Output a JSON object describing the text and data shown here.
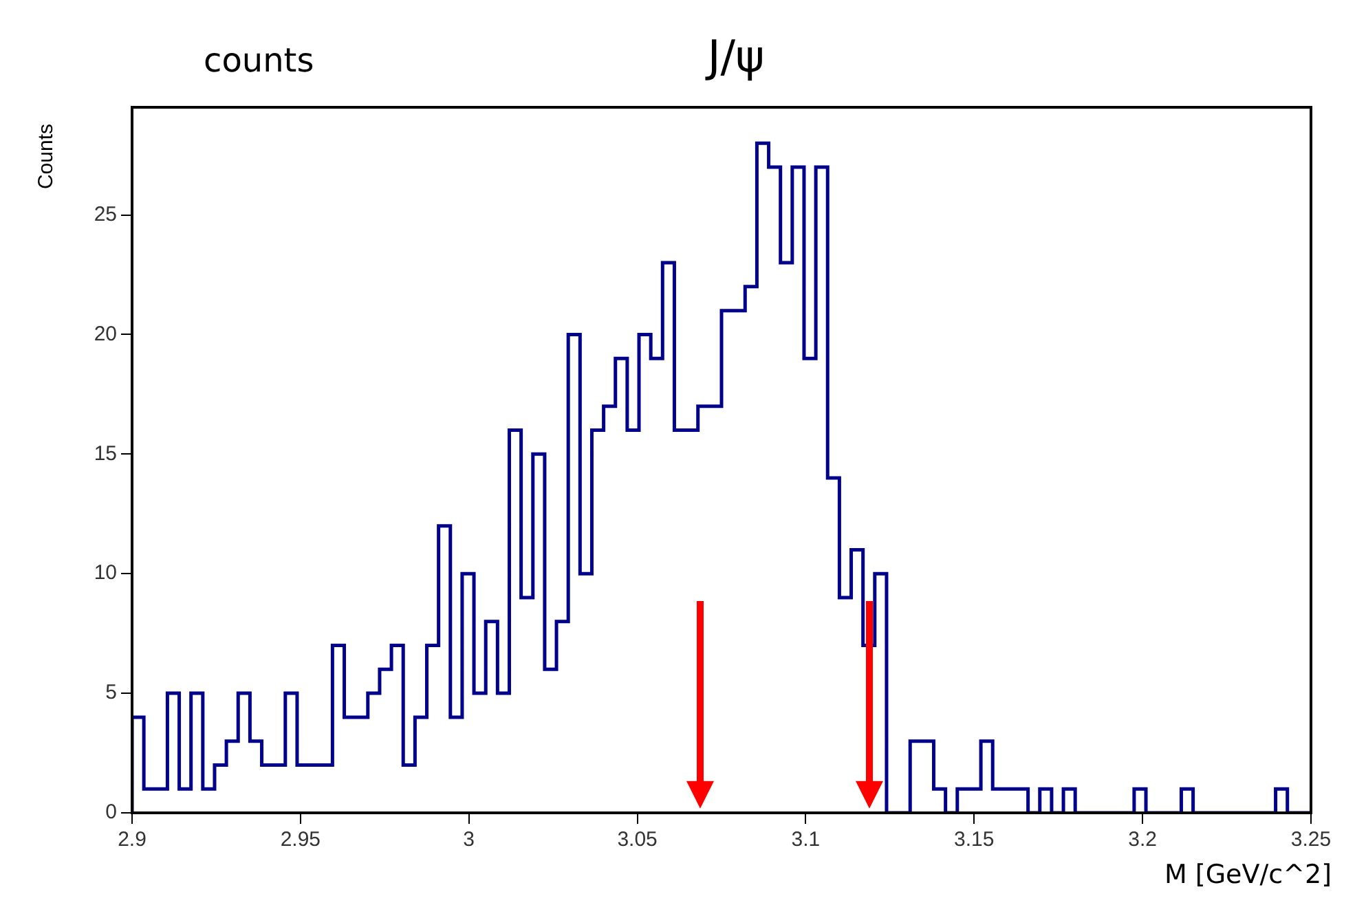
{
  "chart_data": {
    "type": "histogram",
    "title": "J/ψ",
    "xlabel": "M [GeV/c^2]",
    "ylabel": "Counts",
    "annotations": [
      "counts"
    ],
    "bins": [
      2.9,
      2.9035,
      2.907,
      2.9105,
      2.914,
      2.9175,
      2.921,
      2.9245,
      2.928,
      2.9315,
      2.935,
      2.9385,
      2.942,
      2.9455,
      2.949,
      2.9525,
      2.956,
      2.9595,
      2.963,
      2.9665,
      2.97,
      2.9735,
      2.977,
      2.9805,
      2.984,
      2.9875,
      2.991,
      2.9945,
      2.998,
      3.0015,
      3.005,
      3.0085,
      3.012,
      3.0155,
      3.019,
      3.0225,
      3.026,
      3.0295,
      3.033,
      3.0365,
      3.04,
      3.0435,
      3.047,
      3.0505,
      3.054,
      3.0575,
      3.061,
      3.0645,
      3.068,
      3.0715,
      3.075,
      3.0785,
      3.082,
      3.0855,
      3.089,
      3.0925,
      3.096,
      3.0995,
      3.103,
      3.1065,
      3.11,
      3.1135,
      3.117,
      3.1205,
      3.124,
      3.1275,
      3.131,
      3.1345,
      3.138,
      3.1415,
      3.145,
      3.1485,
      3.152,
      3.1555,
      3.159,
      3.1625,
      3.166,
      3.1695,
      3.173,
      3.1765,
      3.18,
      3.1835,
      3.187,
      3.1905,
      3.194,
      3.1975,
      3.201,
      3.2045,
      3.208,
      3.2115,
      3.215,
      3.2185,
      3.222,
      3.2255,
      3.229,
      3.2325,
      3.236,
      3.2395,
      3.243,
      3.2465,
      3.25
    ],
    "values": [
      4,
      1,
      1,
      5,
      1,
      5,
      1,
      2,
      3,
      5,
      3,
      2,
      2,
      5,
      2,
      2,
      2,
      7,
      4,
      4,
      5,
      6,
      7,
      2,
      4,
      7,
      12,
      4,
      10,
      5,
      8,
      5,
      16,
      9,
      15,
      6,
      8,
      20,
      10,
      16,
      17,
      19,
      16,
      20,
      19,
      23,
      16,
      16,
      17,
      17,
      21,
      21,
      22,
      28,
      27,
      23,
      27,
      19,
      27,
      14,
      9,
      11,
      7,
      10,
      0,
      0,
      3,
      3,
      1,
      0,
      1,
      1,
      3,
      1,
      1,
      1,
      0,
      1,
      0,
      1,
      0,
      0,
      0,
      0,
      0,
      1,
      0,
      0,
      0,
      1,
      0,
      0,
      0,
      0,
      0,
      0,
      0,
      1,
      0,
      0
    ],
    "color": "#00008b",
    "xlim": [
      2.9,
      3.25
    ],
    "xticks": [
      2.9,
      2.95,
      3,
      3.05,
      3.1,
      3.15,
      3.2,
      3.25
    ],
    "ylim": [
      0,
      29.5
    ],
    "yticks": [
      0,
      5,
      10,
      15,
      20,
      25
    ],
    "grid": false,
    "legend": false
  }
}
